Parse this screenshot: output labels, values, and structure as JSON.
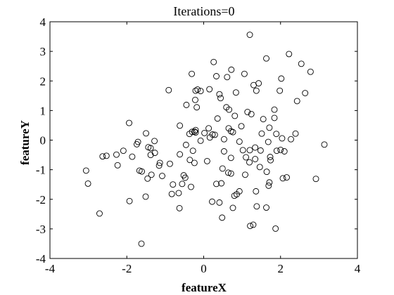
{
  "chart_data": {
    "type": "scatter",
    "title": "Iterations=0",
    "xlabel": "featureX",
    "ylabel": "featureY",
    "xlim": [
      -4,
      4
    ],
    "ylim": [
      -4,
      4
    ],
    "xticks": [
      -4,
      -2,
      0,
      2,
      4
    ],
    "yticks": [
      -4,
      -3,
      -2,
      -1,
      0,
      1,
      2,
      3,
      4
    ],
    "xtick_labels": [
      "-4",
      "-2",
      "0",
      "2",
      "4"
    ],
    "ytick_labels": [
      "-4",
      "-3",
      "-2",
      "-1",
      "0",
      "1",
      "2",
      "3",
      "4"
    ],
    "grid": false,
    "marker": "open-circle",
    "marker_color": "#000000",
    "series": [
      {
        "points": [
          [
            1.2,
            3.56
          ],
          [
            2.22,
            2.91
          ],
          [
            1.63,
            2.76
          ],
          [
            2.54,
            2.58
          ],
          [
            0.26,
            2.64
          ],
          [
            -0.31,
            2.24
          ],
          [
            2.78,
            2.31
          ],
          [
            0.72,
            2.38
          ],
          [
            0.33,
            2.16
          ],
          [
            0.61,
            2.13
          ],
          [
            1.06,
            2.24
          ],
          [
            0.15,
            1.72
          ],
          [
            1.43,
            1.92
          ],
          [
            1.3,
            1.86
          ],
          [
            -0.21,
            1.67
          ],
          [
            2.02,
            2.08
          ],
          [
            1.98,
            1.67
          ],
          [
            1.37,
            1.67
          ],
          [
            2.64,
            1.59
          ],
          [
            -0.91,
            1.69
          ],
          [
            -0.16,
            1.71
          ],
          [
            -0.08,
            1.66
          ],
          [
            0.41,
            1.55
          ],
          [
            0.44,
            1.42
          ],
          [
            0.84,
            1.61
          ],
          [
            2.43,
            1.32
          ],
          [
            -0.22,
            1.36
          ],
          [
            -0.18,
            1.11
          ],
          [
            -0.45,
            1.19
          ],
          [
            0.59,
            1.11
          ],
          [
            0.66,
            1.03
          ],
          [
            1.14,
            0.95
          ],
          [
            1.24,
            0.88
          ],
          [
            1.84,
            1.03
          ],
          [
            1.55,
            0.71
          ],
          [
            1.84,
            0.75
          ],
          [
            0.81,
            0.82
          ],
          [
            0.36,
            0.73
          ],
          [
            0.13,
            0.4
          ],
          [
            -0.62,
            0.49
          ],
          [
            0.65,
            0.4
          ],
          [
            0.71,
            0.3
          ],
          [
            0.76,
            0.27
          ],
          [
            0.23,
            0.19
          ],
          [
            0.16,
            0.09
          ],
          [
            -0.37,
            0.21
          ],
          [
            -0.3,
            0.28
          ],
          [
            -0.21,
            0.34
          ],
          [
            -0.24,
            0.29
          ],
          [
            -0.21,
            0.26
          ],
          [
            0.98,
            0.47
          ],
          [
            1.71,
            0.42
          ],
          [
            2.39,
            0.22
          ],
          [
            1.51,
            0.22
          ],
          [
            1.89,
            0.21
          ],
          [
            2.04,
            0.06
          ],
          [
            2.27,
            0.03
          ],
          [
            -1.94,
            0.58
          ],
          [
            -1.5,
            0.23
          ],
          [
            -1.71,
            -0.06
          ],
          [
            -1.74,
            -0.14
          ],
          [
            -1.28,
            -0.03
          ],
          [
            -1.38,
            -0.27
          ],
          [
            -1.44,
            -0.24
          ],
          [
            -1.27,
            -0.43
          ],
          [
            -1.38,
            -0.5
          ],
          [
            -1.86,
            -0.56
          ],
          [
            -2.09,
            -0.36
          ],
          [
            -2.27,
            -0.49
          ],
          [
            -2.53,
            -0.53
          ],
          [
            -2.63,
            -0.55
          ],
          [
            -2.24,
            -0.85
          ],
          [
            -1.14,
            -0.77
          ],
          [
            -1.16,
            -0.86
          ],
          [
            -0.88,
            -0.8
          ],
          [
            -0.28,
            -0.36
          ],
          [
            -0.46,
            -0.16
          ],
          [
            -0.62,
            -0.48
          ],
          [
            -0.36,
            -0.67
          ],
          [
            -0.24,
            -0.77
          ],
          [
            0.09,
            -0.71
          ],
          [
            0.02,
            0.24
          ],
          [
            0.29,
            0.18
          ],
          [
            0.53,
            0.03
          ],
          [
            -0.08,
            -0.02
          ],
          [
            0.93,
            -0.05
          ],
          [
            1.02,
            -0.34
          ],
          [
            1.2,
            -0.34
          ],
          [
            1.34,
            -0.25
          ],
          [
            1.48,
            -0.35
          ],
          [
            1.68,
            -0.06
          ],
          [
            1.9,
            -0.36
          ],
          [
            2.0,
            -0.33
          ],
          [
            2.1,
            -0.38
          ],
          [
            0.53,
            -0.38
          ],
          [
            0.71,
            -0.6
          ],
          [
            1.1,
            -0.58
          ],
          [
            1.19,
            -0.75
          ],
          [
            1.34,
            -0.64
          ],
          [
            1.46,
            -0.91
          ],
          [
            1.74,
            -0.68
          ],
          [
            1.73,
            -0.57
          ],
          [
            1.64,
            -1.07
          ],
          [
            0.49,
            -0.96
          ],
          [
            0.64,
            -1.1
          ],
          [
            0.71,
            -1.13
          ],
          [
            1.08,
            -1.17
          ],
          [
            2.06,
            -1.29
          ],
          [
            2.92,
            -1.31
          ],
          [
            3.14,
            -0.15
          ],
          [
            -3.06,
            -1.03
          ],
          [
            -3.01,
            -1.47
          ],
          [
            -1.67,
            -1.03
          ],
          [
            -1.61,
            -1.06
          ],
          [
            -1.46,
            -1.3
          ],
          [
            -1.36,
            -1.17
          ],
          [
            -1.08,
            -1.21
          ],
          [
            -0.8,
            -1.5
          ],
          [
            -0.52,
            -1.19
          ],
          [
            -0.48,
            -1.27
          ],
          [
            -0.56,
            -1.48
          ],
          [
            -0.33,
            -1.58
          ],
          [
            -0.65,
            -1.79
          ],
          [
            -0.83,
            -1.82
          ],
          [
            0.33,
            -1.48
          ],
          [
            0.46,
            -1.46
          ],
          [
            0.8,
            -1.88
          ],
          [
            0.86,
            -1.83
          ],
          [
            0.93,
            -1.73
          ],
          [
            1.36,
            -1.73
          ],
          [
            1.69,
            -1.54
          ],
          [
            1.71,
            -1.43
          ],
          [
            2.16,
            -1.26
          ],
          [
            -1.93,
            -2.06
          ],
          [
            -1.51,
            -1.91
          ],
          [
            -0.63,
            -2.3
          ],
          [
            0.22,
            -2.08
          ],
          [
            0.41,
            -2.11
          ],
          [
            1.38,
            -2.24
          ],
          [
            1.63,
            -2.28
          ],
          [
            0.76,
            -2.29
          ],
          [
            0.48,
            -2.62
          ],
          [
            1.21,
            -2.9
          ],
          [
            1.29,
            -2.86
          ],
          [
            1.87,
            -2.99
          ],
          [
            -2.71,
            -2.48
          ],
          [
            -1.62,
            -3.5
          ]
        ]
      }
    ]
  }
}
